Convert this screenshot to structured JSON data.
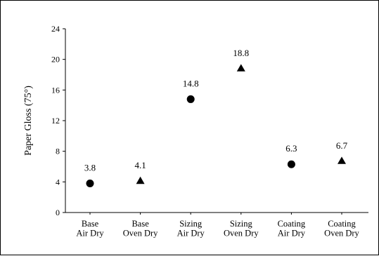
{
  "chart_data": {
    "type": "scatter",
    "title": "",
    "xlabel": "",
    "ylabel": "Paper Gloss (75°)",
    "ylim": [
      0,
      24
    ],
    "yticks": [
      0,
      4,
      8,
      12,
      16,
      20,
      24
    ],
    "grid": false,
    "legend": "none",
    "categories": [
      [
        "Base",
        "Air Dry"
      ],
      [
        "Base",
        "Oven Dry"
      ],
      [
        "Sizing",
        "Air Dry"
      ],
      [
        "Sizing",
        "Oven Dry"
      ],
      [
        "Coating",
        "Air Dry"
      ],
      [
        "Coating",
        "Oven Dry"
      ]
    ],
    "points": [
      {
        "value": 3.8,
        "label": "3.8",
        "marker": "circle"
      },
      {
        "value": 4.1,
        "label": "4.1",
        "marker": "triangle"
      },
      {
        "value": 14.8,
        "label": "14.8",
        "marker": "circle"
      },
      {
        "value": 18.8,
        "label": "18.8",
        "marker": "triangle"
      },
      {
        "value": 6.3,
        "label": "6.3",
        "marker": "circle"
      },
      {
        "value": 6.7,
        "label": "6.7",
        "marker": "triangle"
      }
    ],
    "marker_color": "#000000"
  }
}
